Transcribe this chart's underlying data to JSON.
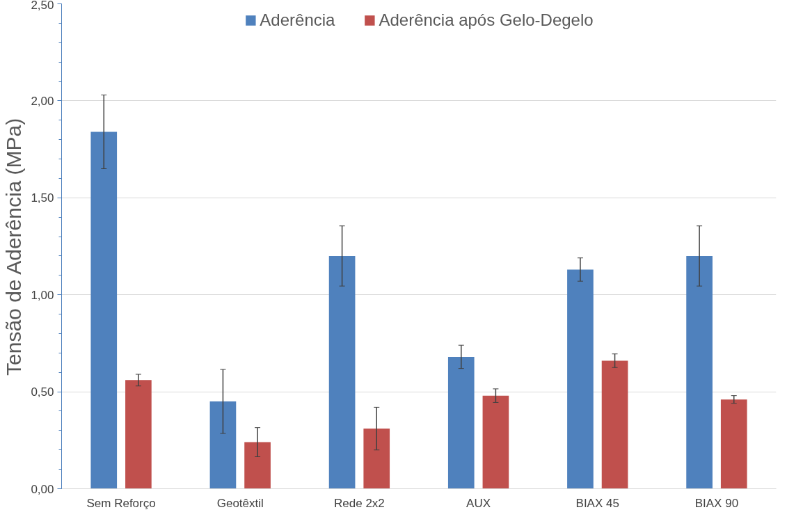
{
  "chart_data": {
    "type": "bar",
    "ylabel": "Tensão de Aderência (MPa)",
    "categories": [
      "Sem Reforço",
      "Geotêxtil",
      "Rede 2x2",
      "AUX",
      "BIAX 45",
      "BIAX 90"
    ],
    "series": [
      {
        "name": "Aderência",
        "color": "#4f81bd",
        "values": [
          1.84,
          0.45,
          1.2,
          0.68,
          1.13,
          1.2
        ],
        "errors": [
          0.19,
          0.165,
          0.155,
          0.06,
          0.06,
          0.155
        ]
      },
      {
        "name": "Aderência após Gelo-Degelo",
        "color": "#c0504d",
        "values": [
          0.56,
          0.24,
          0.31,
          0.48,
          0.66,
          0.46
        ],
        "errors": [
          0.03,
          0.075,
          0.11,
          0.035,
          0.035,
          0.02
        ]
      }
    ],
    "ylim": [
      0,
      2.5
    ],
    "yticks": [
      {
        "value": 0,
        "label": "0,00"
      },
      {
        "value": 0.5,
        "label": "0,50"
      },
      {
        "value": 1,
        "label": "1,00"
      },
      {
        "value": 1.5,
        "label": "1,50"
      },
      {
        "value": 2,
        "label": "2,00"
      },
      {
        "value": 2.5,
        "label": "2,50"
      }
    ],
    "grid": "y",
    "legend": "top"
  }
}
